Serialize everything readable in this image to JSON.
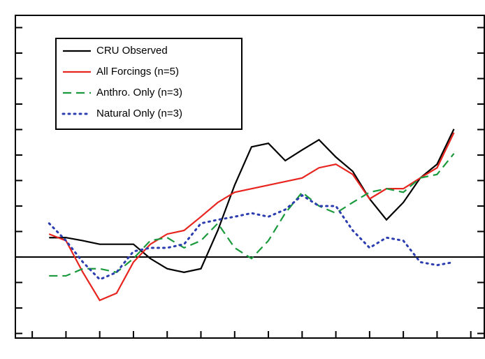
{
  "chart_data": {
    "type": "line",
    "x": [
      0.5,
      1,
      1.5,
      2,
      2.5,
      3,
      3.5,
      4,
      4.5,
      5,
      5.5,
      6,
      6.5,
      7,
      7.5,
      8,
      8.5,
      9,
      9.5,
      10,
      10.5,
      11,
      11.5,
      12,
      12.5
    ],
    "series": [
      {
        "name": "CRU Observed",
        "color": "#000000",
        "dash": "solid",
        "values": [
          0.38,
          0.38,
          0.32,
          0.25,
          0.25,
          0.25,
          -0.03,
          -0.23,
          -0.3,
          -0.23,
          0.52,
          1.41,
          2.16,
          2.23,
          1.89,
          2.1,
          2.3,
          1.96,
          1.68,
          1.14,
          0.73,
          1.07,
          1.55,
          1.82,
          2.51
        ]
      },
      {
        "name": "All Forcings (n=5)",
        "color": "#e8241f",
        "dash": "solid",
        "values": [
          0.45,
          0.32,
          -0.3,
          -0.85,
          -0.71,
          -0.1,
          0.25,
          0.45,
          0.52,
          0.79,
          1.07,
          1.27,
          1.34,
          1.41,
          1.48,
          1.55,
          1.75,
          1.82,
          1.62,
          1.14,
          1.34,
          1.34,
          1.55,
          1.75,
          2.44
        ]
      },
      {
        "name": "Anthro. Only (n=3)",
        "color": "#1a9a3c",
        "dash": "dashed",
        "values": [
          -0.37,
          -0.37,
          -0.23,
          -0.23,
          -0.3,
          -0.03,
          0.32,
          0.38,
          0.18,
          0.32,
          0.66,
          0.18,
          -0.03,
          0.32,
          0.86,
          1.27,
          1.0,
          0.86,
          1.07,
          1.27,
          1.34,
          1.27,
          1.55,
          1.62,
          2.03
        ]
      },
      {
        "name": "Natural Only (n=3)",
        "color": "#2b3db0",
        "dash": "dotted",
        "values": [
          0.66,
          0.32,
          -0.1,
          -0.44,
          -0.3,
          0.11,
          0.18,
          0.18,
          0.25,
          0.66,
          0.73,
          0.79,
          0.86,
          0.79,
          0.93,
          1.21,
          1.0,
          1.0,
          0.52,
          0.18,
          0.38,
          0.32,
          -0.1,
          -0.16,
          -0.1
        ]
      }
    ],
    "xlim": [
      -0.5,
      13.4
    ],
    "xticks": [
      0,
      1,
      2,
      3,
      4,
      5,
      6,
      7,
      8,
      9,
      10,
      11,
      12,
      13
    ],
    "ylim": [
      -1.59,
      4.74
    ],
    "yticks": [
      -1.5,
      -1,
      -0.5,
      0,
      0.5,
      1,
      1.5,
      2,
      2.5,
      3,
      3.5,
      4,
      4.5
    ],
    "hline": 0,
    "legend": "upper left"
  }
}
